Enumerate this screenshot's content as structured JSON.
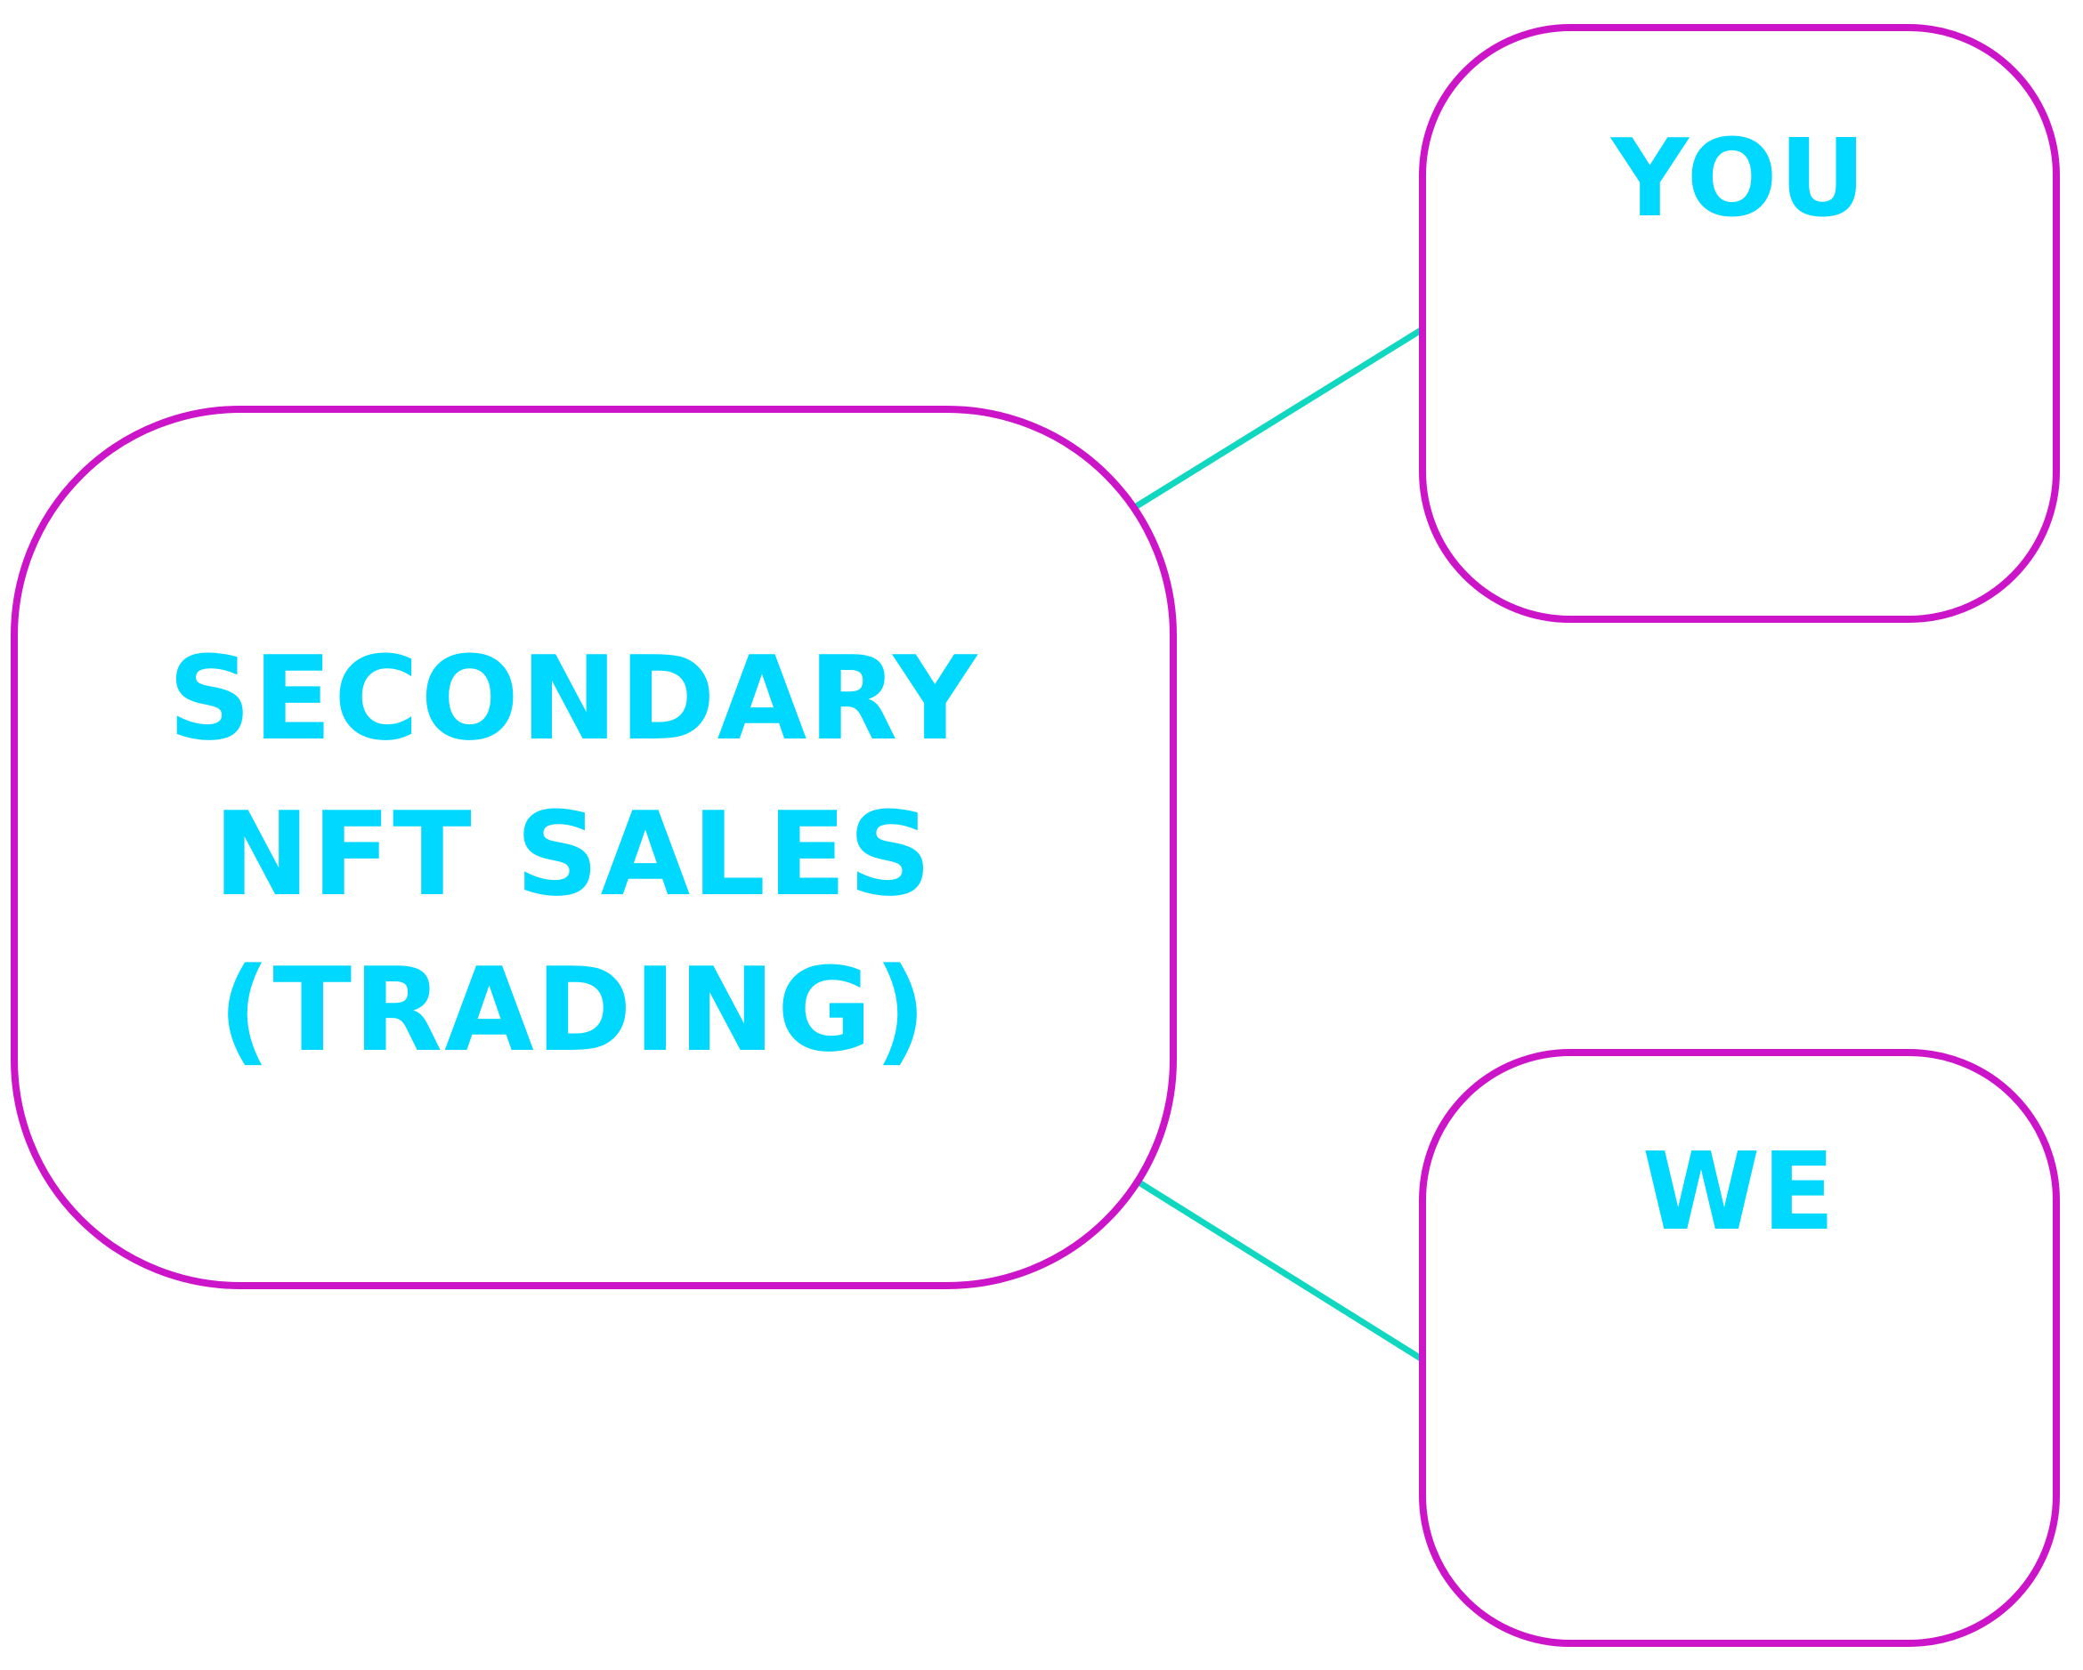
{
  "colors": {
    "border": "#cc14c8",
    "text": "#00d8ff",
    "connector": "#10d8c0",
    "background": "#ffffff"
  },
  "nodes": {
    "main": {
      "lines": [
        "SECONDARY",
        "NFT SALES",
        "(TRADING)"
      ]
    },
    "you": {
      "label": "YOU"
    },
    "we": {
      "label": "WE"
    }
  },
  "edges": [
    {
      "from": "main",
      "to": "you"
    },
    {
      "from": "main",
      "to": "we"
    }
  ]
}
